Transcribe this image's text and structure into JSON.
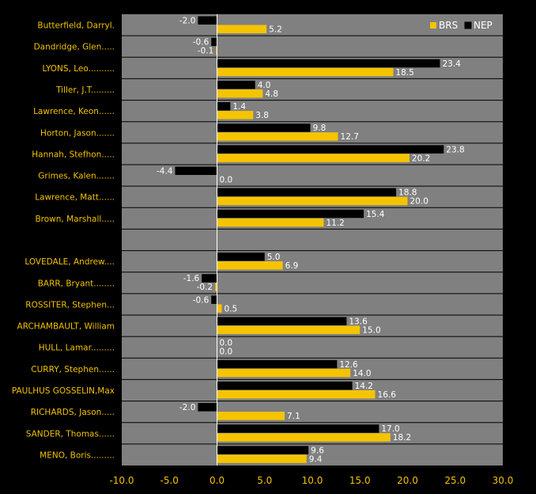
{
  "colors": {
    "background": "#000000",
    "plot_area": "#808080",
    "brs": "#f5c400",
    "nep": "#000000",
    "text_labels": "#f2c200",
    "value_text": "#ffffff"
  },
  "chart_data": {
    "type": "bar",
    "orientation": "horizontal",
    "title": "",
    "xlabel": "",
    "ylabel": "",
    "xlim": [
      -10,
      30
    ],
    "x_ticks": [
      "-10.0",
      "-5.0",
      "0.0",
      "5.0",
      "10.0",
      "15.0",
      "20.0",
      "25.0",
      "30.0"
    ],
    "grid": "horizontal row separators",
    "legend_placement": "top-right",
    "categories": [
      "Butterfield, Darryl.",
      "Dandridge, Glen.....",
      "LYONS, Leo..........",
      "Tiller, J.T.........",
      "Lawrence, Keon......",
      "Horton, Jason.......",
      "Hannah, Stefhon.....",
      "Grimes, Kalen.......",
      "Lawrence, Matt......",
      "Brown, Marshall.....",
      "",
      "LOVEDALE, Andrew....",
      "BARR, Bryant........",
      "ROSSITER, Stephen...",
      "ARCHAMBAULT, William",
      "HULL, Lamar.........",
      "CURRY, Stephen......",
      "PAULHUS GOSSELIN,Max",
      "RICHARDS, Jason.....",
      "SANDER, Thomas......",
      "MENO, Boris........."
    ],
    "series": [
      {
        "name": "NEP",
        "values": [
          -2.0,
          -0.6,
          23.4,
          4.0,
          1.4,
          9.8,
          23.8,
          -4.4,
          18.8,
          15.4,
          null,
          5.0,
          -1.6,
          -0.6,
          13.6,
          0.0,
          12.6,
          14.2,
          -2.0,
          17.0,
          9.6
        ],
        "labels": [
          "-2.0",
          "-0.6",
          "23.4",
          "4.0",
          "1.4",
          "9.8",
          "23.8",
          "-4.4",
          "18.8",
          "15.4",
          "",
          "5.0",
          "-1.6",
          "-0.6",
          "13.6",
          "0.0",
          "12.6",
          "14.2",
          "-2.0",
          "17.0",
          "9.6"
        ]
      },
      {
        "name": "BRS",
        "values": [
          5.2,
          -0.1,
          18.5,
          4.8,
          3.8,
          12.7,
          20.2,
          0.0,
          20.0,
          11.2,
          null,
          6.9,
          -0.2,
          0.5,
          15.0,
          0.0,
          14.0,
          16.6,
          7.1,
          18.2,
          9.4
        ],
        "labels": [
          "5.2",
          "-0.1",
          "18.5",
          "4.8",
          "3.8",
          "12.7",
          "20.2",
          "0.0",
          "20.0",
          "11.2",
          "",
          "6.9",
          "-0.2",
          "0.5",
          "15.0",
          "0.0",
          "14.0",
          "16.6",
          "7.1",
          "18.2",
          "9.4"
        ]
      }
    ]
  }
}
